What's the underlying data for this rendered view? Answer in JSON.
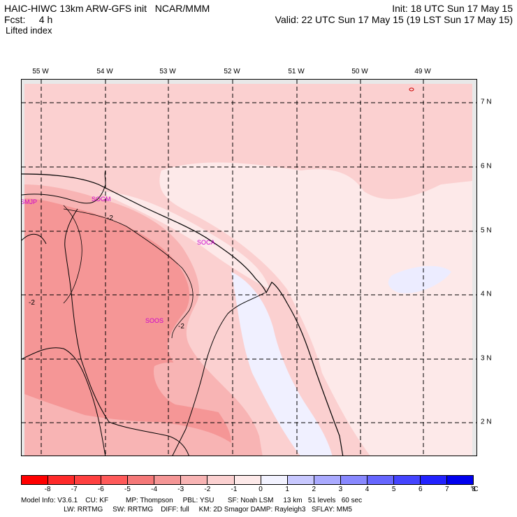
{
  "header": {
    "left_line1": "HAIC-HIWC 13km ARW-GFS init   NCAR/MMM",
    "left_line2": "Fcst:     4 h",
    "left_line3": "Lifted index",
    "right_line1": "Init: 18 UTC Sun 17 May 15",
    "right_line2": "Valid: 22 UTC Sun 17 May 15 (19 LST Sun 17 May 15)"
  },
  "map": {
    "lon_labels": [
      "55 W",
      "54 W",
      "53 W",
      "52 W",
      "51 W",
      "50 W",
      "49 W"
    ],
    "lat_labels": [
      "7 N",
      "6 N",
      "5 N",
      "4 N",
      "3 N",
      "2 N"
    ],
    "stations": [
      "SMJP",
      "SOGM",
      "SOCA",
      "SOOS"
    ],
    "contour_labels": [
      "-2",
      "-2",
      "-2"
    ]
  },
  "colorbar": {
    "ticks": [
      "-8",
      "-7",
      "-6",
      "-5",
      "-4",
      "-3",
      "-2",
      "-1",
      "0",
      "1",
      "2",
      "3",
      "4",
      "5",
      "6",
      "7",
      "8"
    ],
    "unit": "°C",
    "colors": [
      "#ff0000",
      "#ff2a2a",
      "#ff4040",
      "#ff5a5a",
      "#f57878",
      "#f59696",
      "#f8b4b4",
      "#fbd0d0",
      "#fde9e9",
      "#f2f2ff",
      "#c8c8ff",
      "#aaaaff",
      "#8888ff",
      "#6666ff",
      "#4444ff",
      "#2222ff",
      "#0000ee"
    ]
  },
  "footer": {
    "line1": "Model Info: V3.6.1    CU: KF         MP: Thompson     PBL: YSU       SF: Noah LSM     13 km   51 levels   60 sec",
    "line2": "                      LW: RRTMG     SW: RRTMG    DIFF: full     KM: 2D Smagor DAMP: Rayleigh3   SFLAY: MM5"
  }
}
